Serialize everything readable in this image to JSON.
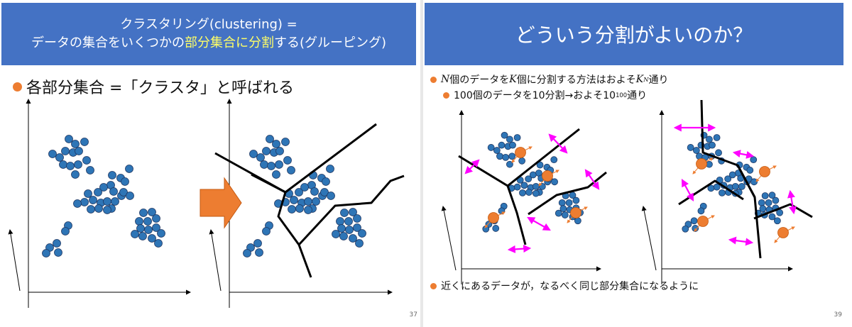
{
  "left": {
    "title_line1": "クラスタリング(clustering) =",
    "title_line2_pre": "データの集合をいくつかの",
    "title_line2_hl": "部分集合に分割",
    "title_line2_post": "する(グルーピング)",
    "bullet": "各部分集合 =「クラスタ」と呼ばれる",
    "page_number": "37",
    "colors": {
      "title_bg": "#4472c4",
      "highlight": "#ffff66",
      "point": "#2e75b6",
      "arrow": "#ed7d31"
    }
  },
  "right": {
    "title": "どういう分割がよいのか？",
    "bullet1_a": "N",
    "bullet1_b": "個のデータを",
    "bullet1_c": "K",
    "bullet1_d": "個に分割する方法はおよそ",
    "bullet1_e": "K",
    "bullet1_sup": "N",
    "bullet1_f": "通り",
    "bullet2_a": "100個のデータを10分割→およそ10",
    "bullet2_sup": "100",
    "bullet2_b": "通り",
    "bullet3": "近くにあるデータが，なるべく同じ部分集合になるように",
    "page_number": "39",
    "colors": {
      "centroid": "#ed7d31",
      "distance_arrow": "#ff00ff",
      "point": "#2e75b6"
    }
  }
}
